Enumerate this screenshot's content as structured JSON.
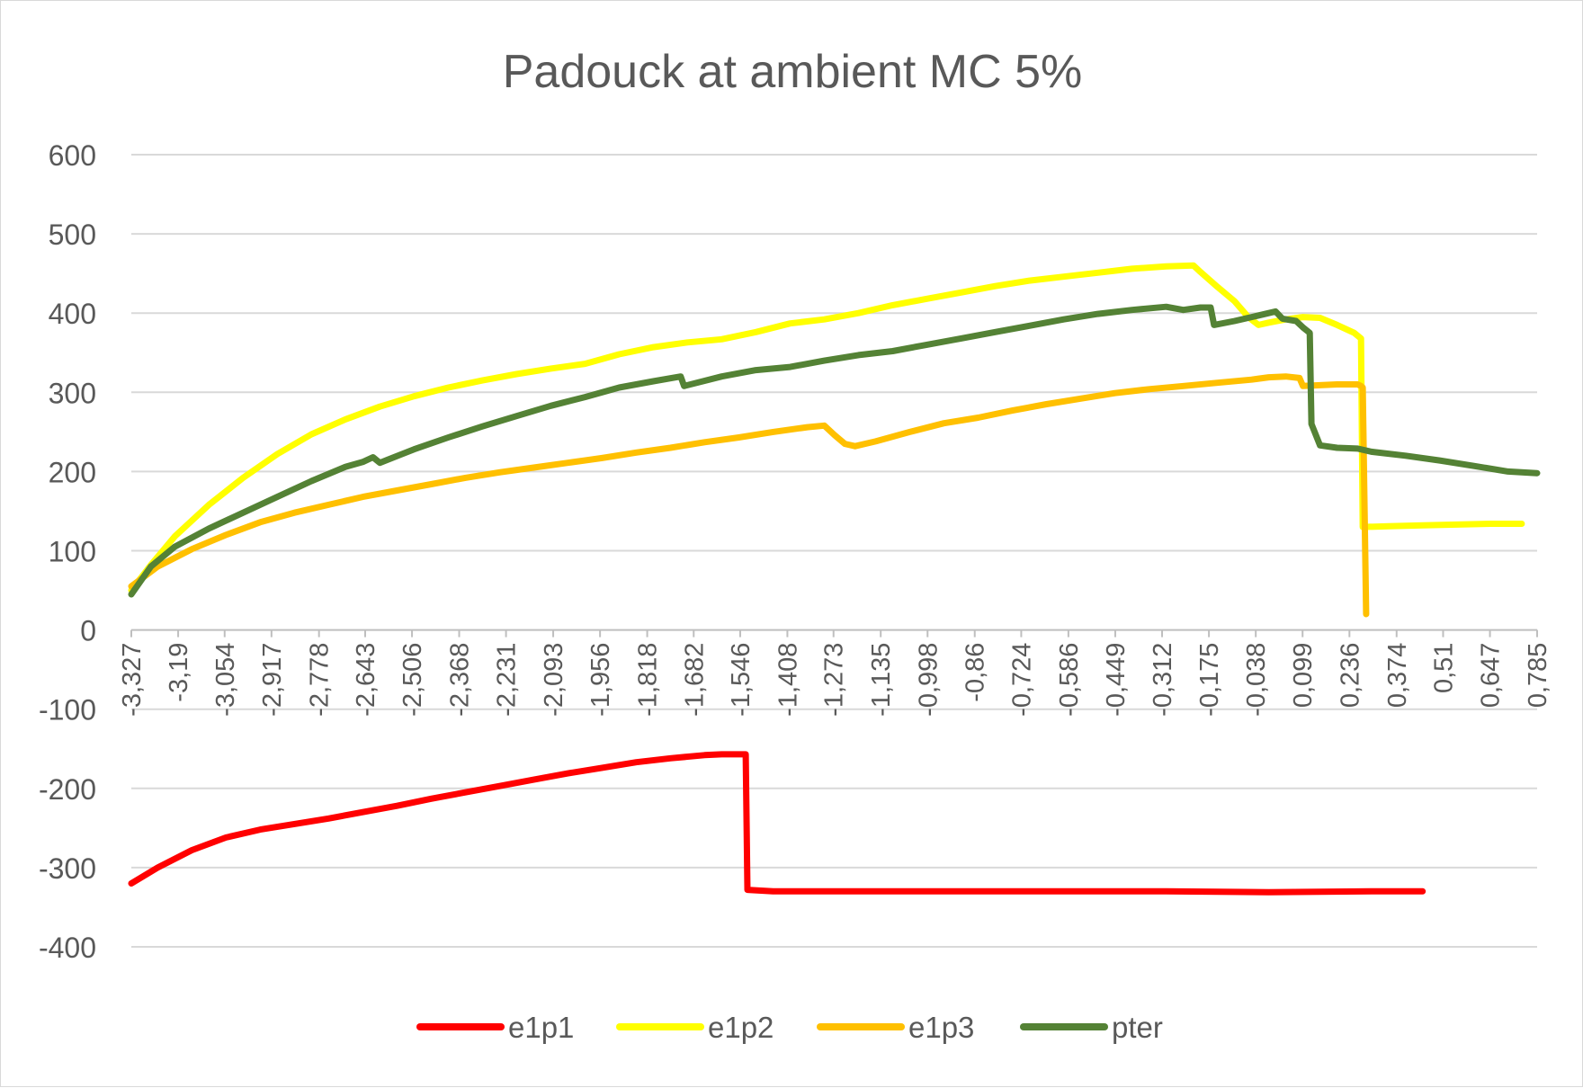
{
  "chart_data": {
    "type": "line",
    "title": "Padouck at ambient MC 5%",
    "xlabel": "",
    "ylabel": "",
    "ylim": [
      -400,
      600
    ],
    "y_ticks": [
      "600",
      "500",
      "400",
      "300",
      "200",
      "100",
      "0",
      "-100",
      "-200",
      "-300",
      "-400"
    ],
    "x_tick_labels": [
      "-3,327",
      "-3,19",
      "-3,054",
      "-2,917",
      "-2,778",
      "-2,643",
      "-2,506",
      "-2,368",
      "-2,231",
      "-2,093",
      "-1,956",
      "-1,818",
      "-1,682",
      "-1,546",
      "-1,408",
      "-1,273",
      "-1,135",
      "-0,998",
      "-0,86",
      "-0,724",
      "-0,586",
      "-0,449",
      "-0,312",
      "-0,175",
      "-0,038",
      "0,099",
      "0,236",
      "0,374",
      "0,51",
      "0,647",
      "0,785"
    ],
    "x_tick_values": [
      -3.327,
      -3.19,
      -3.054,
      -2.917,
      -2.778,
      -2.643,
      -2.506,
      -2.368,
      -2.231,
      -2.093,
      -1.956,
      -1.818,
      -1.682,
      -1.546,
      -1.408,
      -1.273,
      -1.135,
      -0.998,
      -0.86,
      -0.724,
      -0.586,
      -0.449,
      -0.312,
      -0.175,
      -0.038,
      0.099,
      0.236,
      0.374,
      0.51,
      0.647,
      0.785
    ],
    "xlim": [
      -3.327,
      0.785
    ],
    "grid": "horizontal",
    "legend_position": "bottom",
    "series": [
      {
        "name": "e1p1",
        "color": "#ff0000",
        "points": [
          [
            -3.327,
            -320
          ],
          [
            -3.25,
            -300
          ],
          [
            -3.15,
            -278
          ],
          [
            -3.05,
            -262
          ],
          [
            -2.95,
            -252
          ],
          [
            -2.85,
            -245
          ],
          [
            -2.75,
            -238
          ],
          [
            -2.65,
            -230
          ],
          [
            -2.55,
            -222
          ],
          [
            -2.45,
            -213
          ],
          [
            -2.35,
            -205
          ],
          [
            -2.25,
            -197
          ],
          [
            -2.15,
            -189
          ],
          [
            -2.05,
            -181
          ],
          [
            -1.95,
            -174
          ],
          [
            -1.85,
            -167
          ],
          [
            -1.75,
            -162
          ],
          [
            -1.65,
            -158
          ],
          [
            -1.6,
            -157
          ],
          [
            -1.53,
            -157
          ],
          [
            -1.525,
            -328
          ],
          [
            -1.45,
            -330
          ],
          [
            -1.2,
            -330
          ],
          [
            -0.9,
            -330
          ],
          [
            -0.6,
            -330
          ],
          [
            -0.3,
            -330
          ],
          [
            0.0,
            -331
          ],
          [
            0.3,
            -330
          ],
          [
            0.45,
            -330
          ]
        ]
      },
      {
        "name": "e1p2",
        "color": "#ffff00",
        "points": [
          [
            -3.327,
            50
          ],
          [
            -3.27,
            82
          ],
          [
            -3.2,
            118
          ],
          [
            -3.1,
            158
          ],
          [
            -3.0,
            192
          ],
          [
            -2.9,
            222
          ],
          [
            -2.8,
            247
          ],
          [
            -2.7,
            266
          ],
          [
            -2.6,
            282
          ],
          [
            -2.5,
            295
          ],
          [
            -2.4,
            306
          ],
          [
            -2.3,
            315
          ],
          [
            -2.2,
            323
          ],
          [
            -2.1,
            330
          ],
          [
            -2.0,
            336
          ],
          [
            -1.9,
            348
          ],
          [
            -1.8,
            357
          ],
          [
            -1.7,
            363
          ],
          [
            -1.6,
            367
          ],
          [
            -1.5,
            376
          ],
          [
            -1.4,
            387
          ],
          [
            -1.3,
            392
          ],
          [
            -1.2,
            400
          ],
          [
            -1.1,
            410
          ],
          [
            -1.0,
            418
          ],
          [
            -0.9,
            426
          ],
          [
            -0.8,
            434
          ],
          [
            -0.7,
            441
          ],
          [
            -0.6,
            446
          ],
          [
            -0.5,
            451
          ],
          [
            -0.4,
            456
          ],
          [
            -0.3,
            459
          ],
          [
            -0.22,
            460
          ],
          [
            -0.2,
            452
          ],
          [
            -0.15,
            433
          ],
          [
            -0.1,
            415
          ],
          [
            -0.06,
            395
          ],
          [
            -0.03,
            385
          ],
          [
            0.0,
            388
          ],
          [
            0.05,
            392
          ],
          [
            0.1,
            395
          ],
          [
            0.15,
            394
          ],
          [
            0.2,
            385
          ],
          [
            0.25,
            375
          ],
          [
            0.27,
            368
          ],
          [
            0.275,
            130
          ],
          [
            0.35,
            131
          ],
          [
            0.45,
            132
          ],
          [
            0.55,
            133
          ],
          [
            0.65,
            134
          ],
          [
            0.74,
            134
          ]
        ]
      },
      {
        "name": "e1p3",
        "color": "#ffc000",
        "points": [
          [
            -3.327,
            55
          ],
          [
            -3.25,
            80
          ],
          [
            -3.15,
            102
          ],
          [
            -3.05,
            120
          ],
          [
            -2.95,
            136
          ],
          [
            -2.85,
            148
          ],
          [
            -2.75,
            158
          ],
          [
            -2.65,
            168
          ],
          [
            -2.55,
            176
          ],
          [
            -2.45,
            184
          ],
          [
            -2.35,
            192
          ],
          [
            -2.25,
            199
          ],
          [
            -2.15,
            205
          ],
          [
            -2.05,
            211
          ],
          [
            -1.95,
            217
          ],
          [
            -1.85,
            224
          ],
          [
            -1.75,
            230
          ],
          [
            -1.65,
            237
          ],
          [
            -1.55,
            243
          ],
          [
            -1.45,
            250
          ],
          [
            -1.35,
            256
          ],
          [
            -1.3,
            258
          ],
          [
            -1.27,
            246
          ],
          [
            -1.24,
            235
          ],
          [
            -1.21,
            232
          ],
          [
            -1.15,
            238
          ],
          [
            -1.05,
            250
          ],
          [
            -0.95,
            261
          ],
          [
            -0.85,
            268
          ],
          [
            -0.75,
            277
          ],
          [
            -0.65,
            285
          ],
          [
            -0.55,
            292
          ],
          [
            -0.45,
            299
          ],
          [
            -0.35,
            304
          ],
          [
            -0.25,
            308
          ],
          [
            -0.15,
            312
          ],
          [
            -0.05,
            316
          ],
          [
            0.0,
            319
          ],
          [
            0.05,
            320
          ],
          [
            0.09,
            318
          ],
          [
            0.1,
            308
          ],
          [
            0.15,
            309
          ],
          [
            0.2,
            310
          ],
          [
            0.26,
            310
          ],
          [
            0.27,
            308
          ],
          [
            0.275,
            306
          ],
          [
            0.285,
            20
          ]
        ]
      },
      {
        "name": "pter",
        "color": "#548235",
        "points": [
          [
            -3.327,
            45
          ],
          [
            -3.27,
            80
          ],
          [
            -3.2,
            105
          ],
          [
            -3.1,
            128
          ],
          [
            -3.0,
            148
          ],
          [
            -2.9,
            168
          ],
          [
            -2.8,
            188
          ],
          [
            -2.7,
            206
          ],
          [
            -2.65,
            212
          ],
          [
            -2.62,
            218
          ],
          [
            -2.6,
            211
          ],
          [
            -2.5,
            228
          ],
          [
            -2.4,
            243
          ],
          [
            -2.3,
            257
          ],
          [
            -2.2,
            270
          ],
          [
            -2.1,
            283
          ],
          [
            -2.0,
            294
          ],
          [
            -1.9,
            306
          ],
          [
            -1.8,
            314
          ],
          [
            -1.72,
            320
          ],
          [
            -1.71,
            308
          ],
          [
            -1.6,
            320
          ],
          [
            -1.5,
            328
          ],
          [
            -1.4,
            332
          ],
          [
            -1.3,
            340
          ],
          [
            -1.2,
            347
          ],
          [
            -1.1,
            352
          ],
          [
            -1.0,
            360
          ],
          [
            -0.9,
            368
          ],
          [
            -0.8,
            376
          ],
          [
            -0.7,
            384
          ],
          [
            -0.6,
            392
          ],
          [
            -0.5,
            399
          ],
          [
            -0.4,
            404
          ],
          [
            -0.3,
            408
          ],
          [
            -0.25,
            404
          ],
          [
            -0.2,
            407
          ],
          [
            -0.17,
            407
          ],
          [
            -0.16,
            385
          ],
          [
            -0.1,
            390
          ],
          [
            -0.05,
            395
          ],
          [
            0.0,
            400
          ],
          [
            0.02,
            402
          ],
          [
            0.04,
            393
          ],
          [
            0.08,
            390
          ],
          [
            0.1,
            382
          ],
          [
            0.12,
            375
          ],
          [
            0.125,
            260
          ],
          [
            0.15,
            233
          ],
          [
            0.2,
            230
          ],
          [
            0.26,
            229
          ],
          [
            0.3,
            225
          ],
          [
            0.4,
            220
          ],
          [
            0.5,
            214
          ],
          [
            0.6,
            207
          ],
          [
            0.7,
            200
          ],
          [
            0.785,
            198
          ]
        ]
      }
    ]
  }
}
